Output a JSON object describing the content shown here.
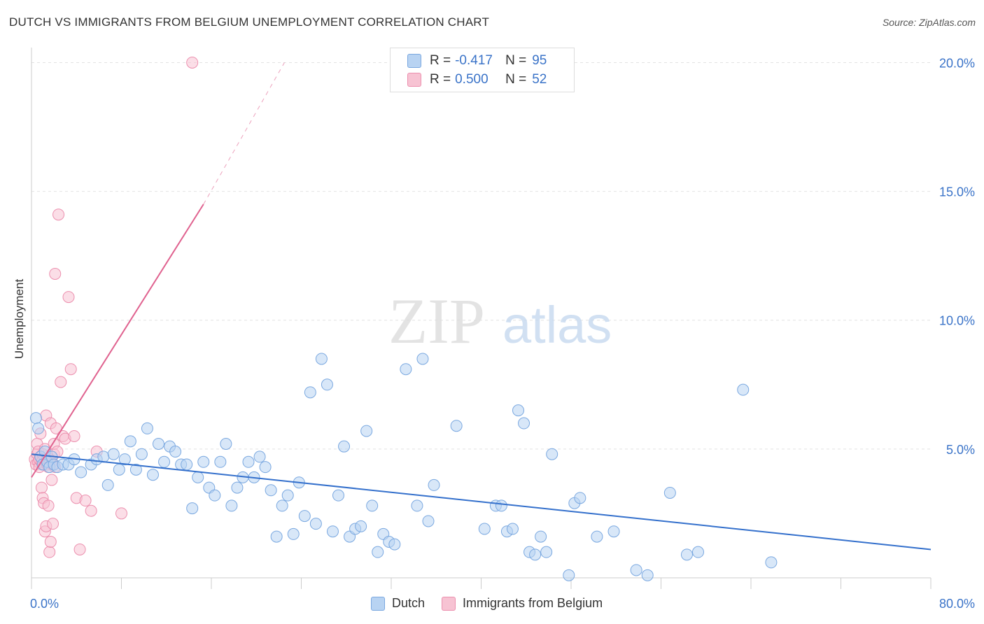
{
  "title": "DUTCH VS IMMIGRANTS FROM BELGIUM UNEMPLOYMENT CORRELATION CHART",
  "source": "Source: ZipAtlas.com",
  "watermark": {
    "zip": "ZIP",
    "atlas": "atlas"
  },
  "colors": {
    "dutch_fill": "#b8d3f2",
    "dutch_stroke": "#7aa8e0",
    "dutch_line": "#3470cc",
    "belgium_fill": "#f7c3d3",
    "belgium_stroke": "#ec8fae",
    "belgium_line": "#e0628f",
    "grid": "#e2e2e2",
    "tick_label": "#3a73c8"
  },
  "legend_top": [
    {
      "r_label": "R =",
      "r_value": "-0.417",
      "n_label": "N =",
      "n_value": "95"
    },
    {
      "r_label": "R =",
      "r_value": "0.500",
      "n_label": "N =",
      "n_value": "52"
    }
  ],
  "legend_bottom": [
    "Dutch",
    "Immigrants from Belgium"
  ],
  "chart_data": {
    "type": "scatter",
    "ylabel": "Unemployment",
    "xlabel": "",
    "xlim": [
      0,
      80
    ],
    "ylim": [
      0,
      20.8
    ],
    "x_tick_labels": [
      {
        "value": 0,
        "label": "0.0%"
      },
      {
        "value": 80,
        "label": "80.0%"
      }
    ],
    "y_tick_labels": [
      {
        "value": 5,
        "label": "5.0%"
      },
      {
        "value": 10,
        "label": "10.0%"
      },
      {
        "value": 15,
        "label": "15.0%"
      },
      {
        "value": 20,
        "label": "20.0%"
      }
    ],
    "x_minor_ticks": [
      0,
      8,
      16,
      24,
      32,
      40,
      48,
      56,
      64,
      72,
      80
    ],
    "series": [
      {
        "name": "Dutch",
        "r": -0.417,
        "n": 95,
        "trend": {
          "x": [
            0,
            80
          ],
          "y": [
            4.8,
            1.1
          ]
        },
        "points": [
          [
            0.4,
            6.2
          ],
          [
            0.6,
            5.8
          ],
          [
            0.8,
            4.7
          ],
          [
            1.0,
            4.4
          ],
          [
            1.2,
            4.9
          ],
          [
            1.4,
            4.5
          ],
          [
            1.6,
            4.3
          ],
          [
            1.8,
            4.7
          ],
          [
            2.0,
            4.4
          ],
          [
            2.3,
            4.3
          ],
          [
            2.8,
            4.4
          ],
          [
            3.3,
            4.4
          ],
          [
            3.8,
            4.6
          ],
          [
            4.4,
            4.1
          ],
          [
            5.3,
            4.4
          ],
          [
            5.8,
            4.6
          ],
          [
            6.4,
            4.7
          ],
          [
            6.8,
            3.6
          ],
          [
            7.3,
            4.8
          ],
          [
            7.8,
            4.2
          ],
          [
            8.3,
            4.6
          ],
          [
            8.8,
            5.3
          ],
          [
            9.3,
            4.2
          ],
          [
            9.8,
            4.8
          ],
          [
            10.3,
            5.8
          ],
          [
            10.8,
            4.0
          ],
          [
            11.3,
            5.2
          ],
          [
            11.8,
            4.5
          ],
          [
            12.3,
            5.1
          ],
          [
            12.8,
            4.9
          ],
          [
            13.3,
            4.4
          ],
          [
            13.8,
            4.4
          ],
          [
            14.3,
            2.7
          ],
          [
            14.8,
            3.9
          ],
          [
            15.3,
            4.5
          ],
          [
            15.8,
            3.5
          ],
          [
            16.3,
            3.2
          ],
          [
            16.8,
            4.5
          ],
          [
            17.3,
            5.2
          ],
          [
            17.8,
            2.8
          ],
          [
            18.3,
            3.5
          ],
          [
            18.8,
            3.9
          ],
          [
            19.3,
            4.5
          ],
          [
            19.8,
            3.9
          ],
          [
            20.3,
            4.7
          ],
          [
            20.8,
            4.3
          ],
          [
            21.3,
            3.4
          ],
          [
            21.8,
            1.6
          ],
          [
            22.3,
            2.8
          ],
          [
            22.8,
            3.2
          ],
          [
            23.3,
            1.7
          ],
          [
            23.8,
            3.7
          ],
          [
            24.3,
            2.4
          ],
          [
            24.8,
            7.2
          ],
          [
            25.3,
            2.1
          ],
          [
            25.8,
            8.5
          ],
          [
            26.3,
            7.5
          ],
          [
            26.8,
            1.8
          ],
          [
            27.3,
            3.2
          ],
          [
            27.8,
            5.1
          ],
          [
            28.3,
            1.6
          ],
          [
            28.8,
            1.9
          ],
          [
            29.3,
            2.0
          ],
          [
            29.8,
            5.7
          ],
          [
            30.3,
            2.8
          ],
          [
            30.8,
            1.0
          ],
          [
            31.3,
            1.7
          ],
          [
            31.8,
            1.4
          ],
          [
            32.3,
            1.3
          ],
          [
            33.3,
            8.1
          ],
          [
            34.3,
            2.8
          ],
          [
            34.8,
            8.5
          ],
          [
            35.3,
            2.2
          ],
          [
            35.8,
            3.6
          ],
          [
            37.8,
            5.9
          ],
          [
            40.3,
            1.9
          ],
          [
            41.3,
            2.8
          ],
          [
            41.8,
            2.8
          ],
          [
            42.3,
            1.8
          ],
          [
            42.8,
            1.9
          ],
          [
            43.3,
            6.5
          ],
          [
            43.8,
            6.0
          ],
          [
            44.3,
            1.0
          ],
          [
            44.8,
            0.9
          ],
          [
            45.3,
            1.6
          ],
          [
            45.8,
            1.0
          ],
          [
            46.3,
            4.8
          ],
          [
            47.8,
            0.1
          ],
          [
            48.3,
            2.9
          ],
          [
            48.8,
            3.1
          ],
          [
            50.3,
            1.6
          ],
          [
            51.8,
            1.8
          ],
          [
            53.8,
            0.3
          ],
          [
            54.8,
            0.1
          ],
          [
            56.8,
            3.3
          ]
        ],
        "points_extra": [
          [
            58.3,
            0.9
          ],
          [
            59.3,
            1.0
          ],
          [
            63.3,
            7.3
          ],
          [
            65.8,
            0.6
          ]
        ]
      },
      {
        "name": "Immigrants from Belgium",
        "r": 0.5,
        "n": 52,
        "trend": {
          "x": [
            0,
            15.3
          ],
          "y": [
            3.9,
            14.5
          ]
        },
        "trend_dashed": {
          "x": [
            15.3,
            22.5
          ],
          "y": [
            14.5,
            20.0
          ]
        },
        "points": [
          [
            0.3,
            4.6
          ],
          [
            0.4,
            4.4
          ],
          [
            0.5,
            4.8
          ],
          [
            0.5,
            5.2
          ],
          [
            0.6,
            4.5
          ],
          [
            0.6,
            4.9
          ],
          [
            0.7,
            4.3
          ],
          [
            0.7,
            4.6
          ],
          [
            0.8,
            4.7
          ],
          [
            0.8,
            5.6
          ],
          [
            0.9,
            4.5
          ],
          [
            0.9,
            3.5
          ],
          [
            1.0,
            4.8
          ],
          [
            1.0,
            3.1
          ],
          [
            1.1,
            2.9
          ],
          [
            1.1,
            4.4
          ],
          [
            1.2,
            5.0
          ],
          [
            1.2,
            1.8
          ],
          [
            1.3,
            6.3
          ],
          [
            1.3,
            2.0
          ],
          [
            1.4,
            4.4
          ],
          [
            1.4,
            4.6
          ],
          [
            1.5,
            2.8
          ],
          [
            1.5,
            4.3
          ],
          [
            1.6,
            4.6
          ],
          [
            1.6,
            1.0
          ],
          [
            1.7,
            1.4
          ],
          [
            1.7,
            6.0
          ],
          [
            1.8,
            3.8
          ],
          [
            1.8,
            4.5
          ],
          [
            1.9,
            4.4
          ],
          [
            1.9,
            2.1
          ],
          [
            2.0,
            4.8
          ],
          [
            2.0,
            5.2
          ],
          [
            2.1,
            11.8
          ],
          [
            2.1,
            4.3
          ],
          [
            2.2,
            5.8
          ],
          [
            2.3,
            4.9
          ],
          [
            2.4,
            14.1
          ],
          [
            2.6,
            7.6
          ],
          [
            2.8,
            5.5
          ],
          [
            3.0,
            5.4
          ],
          [
            3.3,
            10.9
          ],
          [
            3.5,
            8.1
          ],
          [
            3.8,
            5.5
          ],
          [
            4.0,
            3.1
          ],
          [
            4.3,
            1.1
          ],
          [
            4.8,
            3.0
          ],
          [
            5.3,
            2.6
          ],
          [
            5.8,
            4.9
          ],
          [
            8.0,
            2.5
          ],
          [
            14.3,
            20.0
          ]
        ]
      }
    ]
  }
}
